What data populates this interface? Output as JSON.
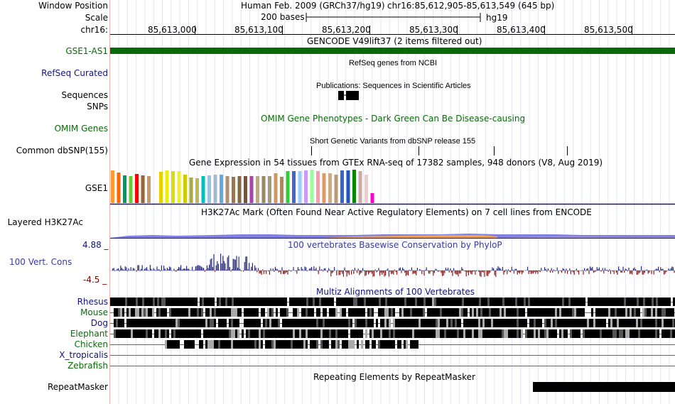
{
  "header": {
    "window_position_label": "Window Position",
    "assembly": "Human Feb. 2009 (GRCh37/hg19)",
    "position": "chr16:85,612,905-85,613,549 (645 bp)",
    "scale_label": "Scale",
    "scale_value": "200 bases",
    "scale_db": "hg19",
    "chrom_label": "chr16:",
    "ruler_ticks": [
      "85,613,000",
      "85,613,100",
      "85,613,200",
      "85,613,300",
      "85,613,400",
      "85,613,500"
    ]
  },
  "tracks": {
    "gencode": {
      "title": "GENCODE V49lift37 (2 items filtered out)",
      "item_label": "GSE1-AS1",
      "color": "#0a6a0a"
    },
    "refseq": {
      "title": "RefSeq genes from NCBI",
      "label": "RefSeq Curated"
    },
    "publications": {
      "title": "Publications: Sequences in Scientific Articles",
      "label_line1": "Sequences",
      "label_line2": "SNPs"
    },
    "omim": {
      "title": "OMIM Gene Phenotypes - Dark Green Can Be Disease-causing",
      "label": "OMIM Genes"
    },
    "dbsnp": {
      "title": "Short Genetic Variants from dbSNP release 155",
      "label": "Common dbSNP(155)"
    },
    "gtex": {
      "title": "Gene Expression in 54 tissues from GTEx RNA-seq of 17382 samples, 948 donors (V8, Aug 2019)",
      "label": "GSE1"
    },
    "h3k27ac": {
      "title": "H3K27Ac Mark (Often Found Near Active Regulatory Elements) on 7 cell lines from ENCODE",
      "label": "Layered H3K27Ac"
    },
    "phylop": {
      "title": "100 vertebrates Basewise Conservation by PhyloP",
      "label": "100 Vert. Cons",
      "max": "4.88 _",
      "min": "-4.5 _"
    },
    "multiz": {
      "title": "Multiz Alignments of 100 Vertebrates",
      "species": [
        "Rhesus",
        "Mouse",
        "Dog",
        "Elephant",
        "Chicken",
        "X_tropicalis",
        "Zebrafish"
      ]
    },
    "rmsk": {
      "title": "Repeating Elements by RepeatMasker",
      "label": "RepeatMasker"
    }
  },
  "colors": {
    "gencode": "#0a6a0a",
    "refseq_label": "#14147a",
    "phylop_pos": "#2b2b80",
    "phylop_neg": "#8b1a1a",
    "gtex_bars": [
      "#ff9933",
      "#ff6600",
      "#009966",
      "#66cc33",
      "#ff0000",
      "#996633",
      "#cc9966",
      "#ffffff",
      "#e8d000",
      "#eeee00",
      "#dddd00",
      "#eeee33",
      "#cccc00",
      "#aaaa44",
      "#bbbb55",
      "#00c0c0",
      "#a0c0e0",
      "#aab8cc",
      "#66aadd",
      "#b09070",
      "#997755",
      "#886644",
      "#775533",
      "#aa44aa",
      "#bbaa88",
      "#998866",
      "#aa9977",
      "#cc9966",
      "#aa8866",
      "#33cc33",
      "#4466cc",
      "#99ccff",
      "#cc99ff",
      "#99ff99",
      "#ff99aa",
      "#dd9966",
      "#ccaa88",
      "#bb9977",
      "#3366cc",
      "#2255bb",
      "#008800",
      "#ccaaaa",
      "#eecccc",
      "#ff00cc"
    ]
  }
}
